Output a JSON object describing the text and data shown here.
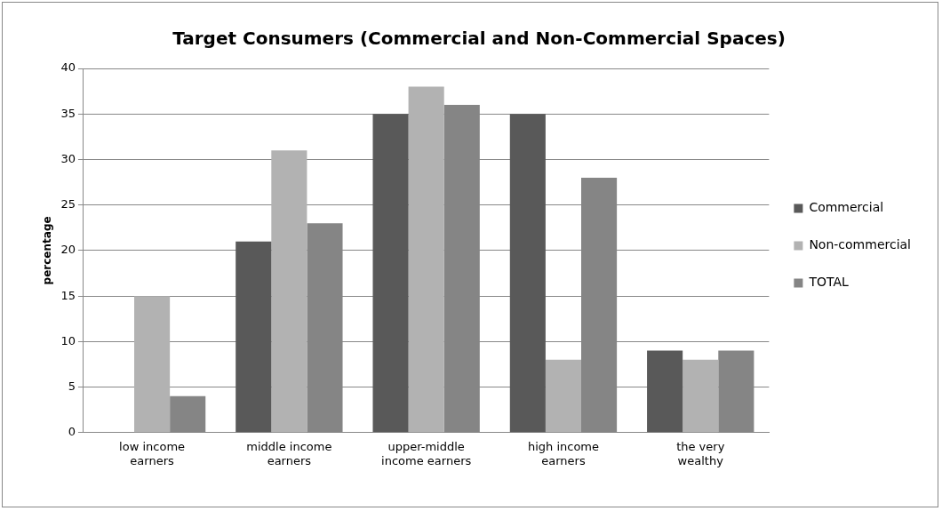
{
  "chart_data": {
    "type": "bar",
    "title": "Target Consumers (Commercial and Non-Commercial Spaces)",
    "ylabel": "percentage",
    "categories": [
      "low income earners",
      "middle income earners",
      "upper-middle income earners",
      "high income earners",
      "the very wealthy"
    ],
    "series": [
      {
        "name": "Commercial",
        "color": "#595959",
        "values": [
          0,
          21,
          35,
          35,
          9
        ]
      },
      {
        "name": "Non-commercial",
        "color": "#b2b2b2",
        "values": [
          15,
          31,
          38,
          8,
          8
        ]
      },
      {
        "name": "TOTAL",
        "color": "#858585",
        "values": [
          4,
          23,
          36,
          28,
          9
        ]
      }
    ],
    "ylim": [
      0,
      40
    ],
    "yticks": [
      0,
      5,
      10,
      15,
      20,
      25,
      30,
      35,
      40
    ],
    "grid": "y",
    "legend": "right"
  }
}
